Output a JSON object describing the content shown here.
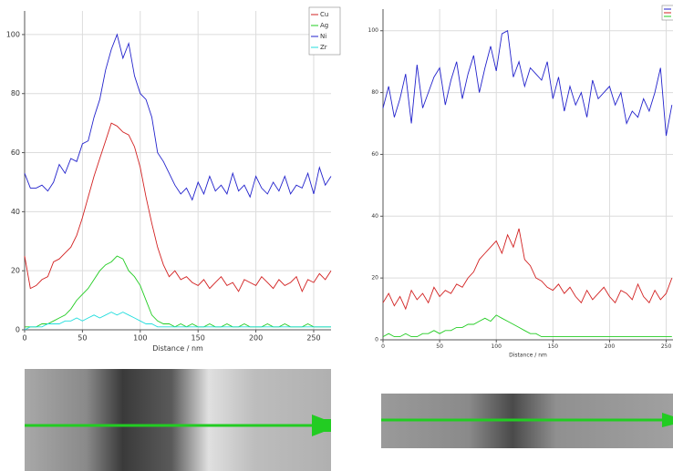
{
  "chart_data": [
    {
      "type": "line",
      "x_label": "Distance / nm",
      "grid": true,
      "legend": "upper right",
      "xlim": [
        0,
        265
      ],
      "ylim": [
        0,
        108
      ],
      "xticks": [
        0,
        50,
        100,
        150,
        200,
        250
      ],
      "yticks": [
        0,
        20,
        40,
        60,
        80,
        100
      ],
      "x": [
        0,
        5,
        10,
        15,
        20,
        25,
        30,
        35,
        40,
        45,
        50,
        55,
        60,
        65,
        70,
        75,
        80,
        85,
        90,
        95,
        100,
        105,
        110,
        115,
        120,
        125,
        130,
        135,
        140,
        145,
        150,
        155,
        160,
        165,
        170,
        175,
        180,
        185,
        190,
        195,
        200,
        205,
        210,
        215,
        220,
        225,
        230,
        235,
        240,
        245,
        250,
        255,
        260,
        265
      ],
      "series": [
        {
          "name": "Cu",
          "color": "#d22020",
          "values": [
            25,
            14,
            15,
            17,
            18,
            23,
            24,
            26,
            28,
            32,
            38,
            45,
            52,
            58,
            64,
            70,
            69,
            67,
            66,
            62,
            55,
            45,
            36,
            28,
            22,
            18,
            20,
            17,
            18,
            16,
            15,
            17,
            14,
            16,
            18,
            15,
            16,
            13,
            17,
            16,
            15,
            18,
            16,
            14,
            17,
            15,
            16,
            18,
            13,
            17,
            16,
            19,
            17,
            20
          ]
        },
        {
          "name": "Ag",
          "color": "#22cc22",
          "values": [
            1,
            1,
            1,
            2,
            2,
            3,
            4,
            5,
            7,
            10,
            12,
            14,
            17,
            20,
            22,
            23,
            25,
            24,
            20,
            18,
            15,
            10,
            5,
            3,
            2,
            2,
            1,
            2,
            1,
            2,
            1,
            1,
            2,
            1,
            1,
            2,
            1,
            1,
            2,
            1,
            1,
            1,
            2,
            1,
            1,
            2,
            1,
            1,
            1,
            2,
            1,
            1,
            1,
            1
          ]
        },
        {
          "name": "Ni",
          "color": "#2222cc",
          "values": [
            53,
            48,
            48,
            49,
            47,
            50,
            56,
            53,
            58,
            57,
            63,
            64,
            72,
            78,
            88,
            95,
            100,
            92,
            97,
            86,
            80,
            78,
            72,
            60,
            57,
            53,
            49,
            46,
            48,
            44,
            50,
            46,
            52,
            47,
            49,
            46,
            53,
            47,
            49,
            45,
            52,
            48,
            46,
            50,
            47,
            52,
            46,
            49,
            48,
            53,
            46,
            55,
            49,
            52
          ]
        },
        {
          "name": "Zr",
          "color": "#22dddd",
          "values": [
            0,
            1,
            1,
            1,
            2,
            2,
            2,
            3,
            3,
            4,
            3,
            4,
            5,
            4,
            5,
            6,
            5,
            6,
            5,
            4,
            3,
            2,
            2,
            1,
            1,
            1,
            1,
            1,
            1,
            1,
            1,
            1,
            1,
            1,
            1,
            1,
            1,
            1,
            1,
            1,
            1,
            1,
            1,
            1,
            1,
            1,
            1,
            1,
            1,
            1,
            1,
            1,
            1,
            1
          ]
        }
      ]
    },
    {
      "type": "line",
      "x_label": "Distance / nm",
      "grid": true,
      "legend": "upper right",
      "xlim": [
        0,
        256
      ],
      "ylim": [
        0,
        107
      ],
      "xticks": [
        0,
        50,
        100,
        150,
        200,
        250
      ],
      "yticks": [
        0,
        20,
        40,
        60,
        80,
        100
      ],
      "x": [
        0,
        5,
        10,
        15,
        20,
        25,
        30,
        35,
        40,
        45,
        50,
        55,
        60,
        65,
        70,
        75,
        80,
        85,
        90,
        95,
        100,
        105,
        110,
        115,
        120,
        125,
        130,
        135,
        140,
        145,
        150,
        155,
        160,
        165,
        170,
        175,
        180,
        185,
        190,
        195,
        200,
        205,
        210,
        215,
        220,
        225,
        230,
        235,
        240,
        245,
        250,
        255
      ],
      "series": [
        {
          "color": "#2222cc",
          "values": [
            75,
            82,
            72,
            78,
            86,
            70,
            89,
            75,
            80,
            85,
            88,
            76,
            84,
            90,
            78,
            86,
            92,
            80,
            88,
            95,
            87,
            99,
            100,
            85,
            90,
            82,
            88,
            86,
            84,
            90,
            78,
            85,
            74,
            82,
            76,
            80,
            72,
            84,
            78,
            80,
            82,
            76,
            80,
            70,
            74,
            72,
            78,
            74,
            80,
            88,
            66,
            76
          ]
        },
        {
          "color": "#d22020",
          "values": [
            12,
            15,
            11,
            14,
            10,
            16,
            13,
            15,
            12,
            17,
            14,
            16,
            15,
            18,
            17,
            20,
            22,
            26,
            28,
            30,
            32,
            28,
            34,
            30,
            36,
            26,
            24,
            20,
            19,
            17,
            16,
            18,
            15,
            17,
            14,
            12,
            16,
            13,
            15,
            17,
            14,
            12,
            16,
            15,
            13,
            18,
            14,
            12,
            16,
            13,
            15,
            20
          ]
        },
        {
          "color": "#22cc22",
          "values": [
            1,
            2,
            1,
            1,
            2,
            1,
            1,
            2,
            2,
            3,
            2,
            3,
            3,
            4,
            4,
            5,
            5,
            6,
            7,
            6,
            8,
            7,
            6,
            5,
            4,
            3,
            2,
            2,
            1,
            1,
            1,
            1,
            1,
            1,
            1,
            1,
            1,
            1,
            1,
            1,
            1,
            1,
            1,
            1,
            1,
            1,
            1,
            1,
            1,
            1,
            1,
            1
          ]
        }
      ]
    }
  ]
}
